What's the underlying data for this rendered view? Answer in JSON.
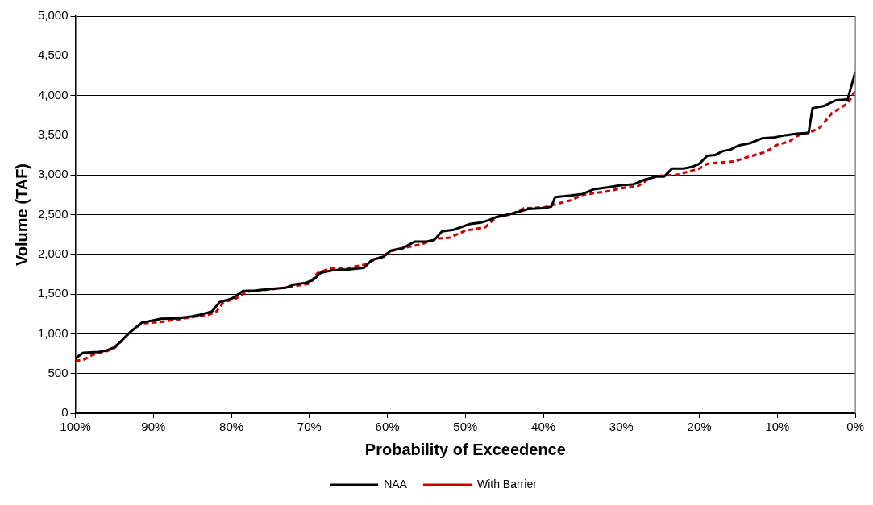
{
  "chart_data": {
    "type": "line",
    "xlabel": "Probability of Exceedence",
    "ylabel": "Volume (TAF)",
    "xlim": [
      100,
      0
    ],
    "xticks": [
      {
        "value": 100,
        "label": "100%"
      },
      {
        "value": 90,
        "label": "90%"
      },
      {
        "value": 80,
        "label": "80%"
      },
      {
        "value": 70,
        "label": "70%"
      },
      {
        "value": 60,
        "label": "60%"
      },
      {
        "value": 50,
        "label": "50%"
      },
      {
        "value": 40,
        "label": "40%"
      },
      {
        "value": 30,
        "label": "30%"
      },
      {
        "value": 20,
        "label": "20%"
      },
      {
        "value": 10,
        "label": "10%"
      },
      {
        "value": 0,
        "label": "0%"
      }
    ],
    "ylim": [
      0,
      5000
    ],
    "yticks": [
      {
        "value": 0,
        "label": "0"
      },
      {
        "value": 500,
        "label": "500"
      },
      {
        "value": 1000,
        "label": "1,000"
      },
      {
        "value": 1500,
        "label": "1,500"
      },
      {
        "value": 2000,
        "label": "2,000"
      },
      {
        "value": 2500,
        "label": "2,500"
      },
      {
        "value": 3000,
        "label": "3,000"
      },
      {
        "value": 3500,
        "label": "3,500"
      },
      {
        "value": 4000,
        "label": "4,000"
      },
      {
        "value": 4500,
        "label": "4,500"
      },
      {
        "value": 5000,
        "label": "5,000"
      }
    ],
    "grid": "y",
    "legend": "bottom",
    "marker": "none",
    "series": [
      {
        "name": "NAA",
        "color": "#000000",
        "line_style": "solid",
        "x": [
          100,
          99,
          97,
          96,
          95,
          94,
          93,
          91.5,
          89,
          87,
          85,
          84,
          82.5,
          81.5,
          80,
          78.5,
          77,
          75,
          73,
          72,
          70.5,
          69.5,
          68.5,
          67,
          65,
          63,
          62,
          60.5,
          59.5,
          58,
          56.5,
          55,
          54,
          53,
          51.5,
          49.5,
          48,
          47,
          46,
          44.5,
          43,
          42,
          40,
          39,
          38.5,
          36.5,
          35,
          33.5,
          32,
          30,
          28.5,
          27,
          25.5,
          24.5,
          23.5,
          22,
          21,
          20,
          19,
          18,
          17,
          16,
          15,
          13.5,
          12,
          10.5,
          9,
          7.5,
          6,
          5.5,
          4,
          2.5,
          1,
          0
        ],
        "values": [
          690,
          760,
          770,
          790,
          830,
          920,
          1020,
          1140,
          1190,
          1195,
          1220,
          1240,
          1280,
          1400,
          1440,
          1540,
          1545,
          1565,
          1580,
          1620,
          1640,
          1680,
          1770,
          1800,
          1810,
          1830,
          1930,
          1970,
          2050,
          2080,
          2160,
          2160,
          2180,
          2290,
          2310,
          2380,
          2400,
          2430,
          2470,
          2500,
          2540,
          2570,
          2580,
          2600,
          2720,
          2740,
          2760,
          2820,
          2840,
          2870,
          2880,
          2940,
          2980,
          2980,
          3080,
          3080,
          3100,
          3140,
          3240,
          3250,
          3300,
          3320,
          3370,
          3400,
          3460,
          3470,
          3500,
          3520,
          3530,
          3840,
          3870,
          3940,
          3950,
          4300
        ]
      },
      {
        "name": "With Barrier",
        "color": "#cc0000",
        "line_style": "dashed",
        "x": [
          100,
          99,
          97.5,
          96,
          95,
          93,
          91.5,
          89,
          87,
          85,
          83,
          82,
          81,
          79.5,
          78,
          76,
          74,
          72,
          70,
          69,
          67.5,
          65.5,
          63,
          61,
          59.5,
          57.5,
          55.5,
          53.5,
          52,
          50,
          47.5,
          46,
          44,
          42.5,
          40,
          38.5,
          36.5,
          35,
          32,
          29.5,
          28,
          26.5,
          25,
          23,
          21.5,
          20,
          19,
          17,
          15.5,
          14,
          11.5,
          10,
          8.5,
          7.5,
          5.5,
          4.5,
          3,
          2,
          1,
          0
        ],
        "values": [
          660,
          670,
          750,
          780,
          820,
          1020,
          1130,
          1150,
          1180,
          1210,
          1240,
          1270,
          1400,
          1440,
          1530,
          1550,
          1570,
          1600,
          1630,
          1760,
          1820,
          1820,
          1870,
          1960,
          2040,
          2090,
          2130,
          2200,
          2210,
          2300,
          2340,
          2470,
          2510,
          2580,
          2590,
          2630,
          2680,
          2750,
          2790,
          2840,
          2850,
          2950,
          2990,
          3000,
          3040,
          3080,
          3140,
          3160,
          3170,
          3220,
          3290,
          3380,
          3420,
          3490,
          3550,
          3600,
          3780,
          3840,
          3900,
          4060
        ]
      }
    ]
  }
}
